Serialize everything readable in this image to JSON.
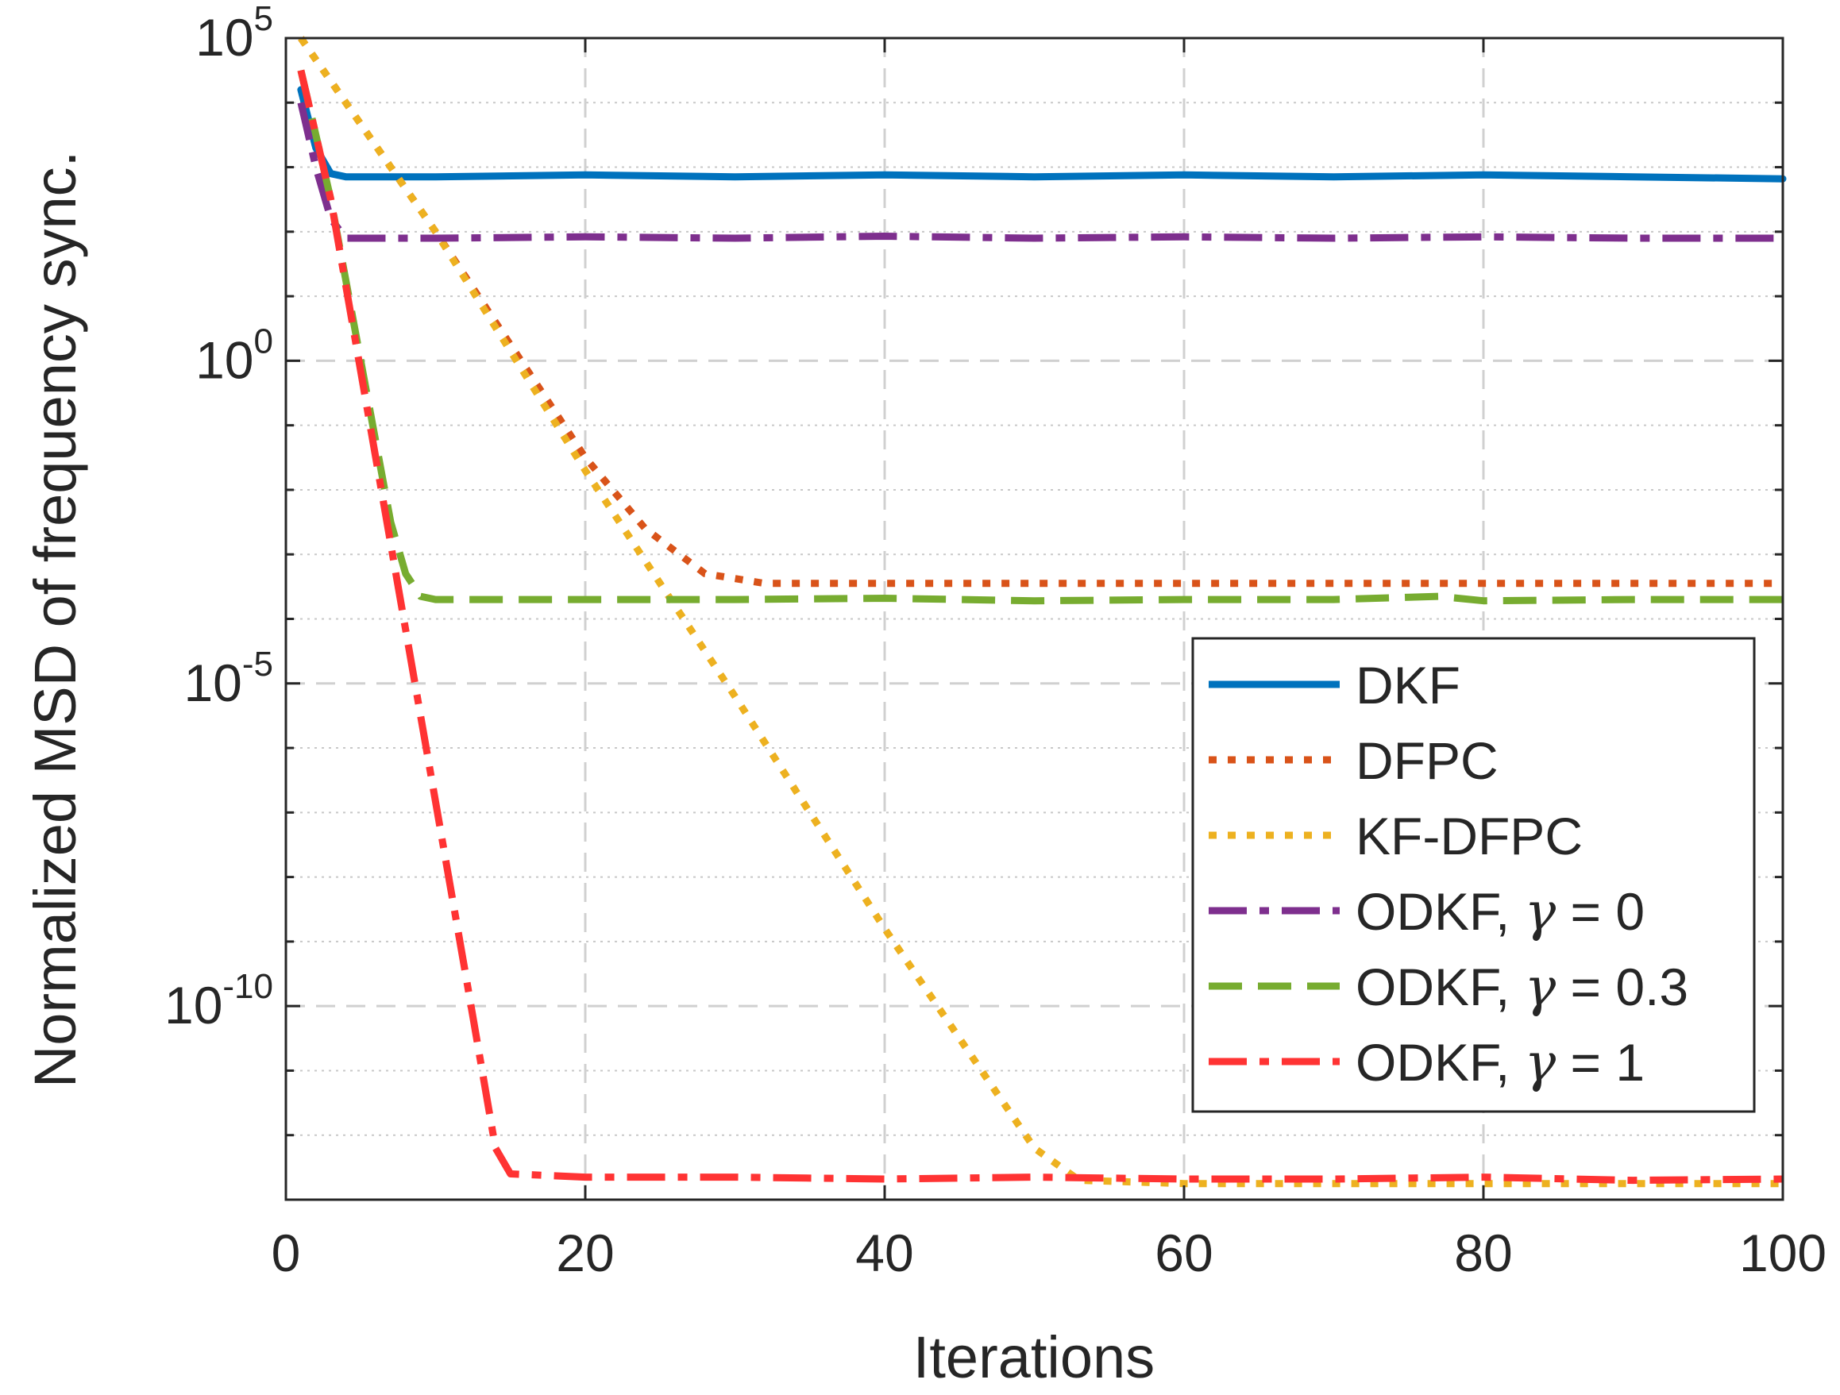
{
  "chart_data": {
    "type": "line",
    "title": "",
    "xlabel": "Iterations",
    "ylabel": "Normalized MSD of frequency sync.",
    "xlim": [
      0,
      100
    ],
    "ylim_exponent": [
      -13,
      5
    ],
    "yscale": "log",
    "grid": true,
    "legend_position": "bottom-right",
    "x_ticks": [
      "0",
      "20",
      "40",
      "60",
      "80",
      "100"
    ],
    "y_ticks": [
      {
        "base": "10",
        "exp": "5",
        "value_exp": 5
      },
      {
        "base": "10",
        "exp": "0",
        "value_exp": 0
      },
      {
        "base": "10",
        "exp": "-5",
        "value_exp": -5
      },
      {
        "base": "10",
        "exp": "-10",
        "value_exp": -10
      }
    ],
    "series": [
      {
        "name": "DKF",
        "color": "#0072BD",
        "style": "solid",
        "points_log10": [
          [
            1,
            4.2
          ],
          [
            2,
            3.3
          ],
          [
            3,
            2.9
          ],
          [
            4,
            2.85
          ],
          [
            10,
            2.85
          ],
          [
            20,
            2.88
          ],
          [
            30,
            2.85
          ],
          [
            40,
            2.88
          ],
          [
            50,
            2.85
          ],
          [
            60,
            2.88
          ],
          [
            70,
            2.85
          ],
          [
            80,
            2.88
          ],
          [
            90,
            2.85
          ],
          [
            100,
            2.82
          ]
        ]
      },
      {
        "name": "DFPC",
        "color": "#D95319",
        "style": "dotted",
        "points_log10": [
          [
            1,
            5
          ],
          [
            10,
            2.0
          ],
          [
            20,
            -1.5
          ],
          [
            24,
            -2.6
          ],
          [
            28,
            -3.3
          ],
          [
            32,
            -3.45
          ],
          [
            40,
            -3.45
          ],
          [
            60,
            -3.45
          ],
          [
            80,
            -3.45
          ],
          [
            100,
            -3.45
          ]
        ]
      },
      {
        "name": "KF-DFPC",
        "color": "#EDB120",
        "style": "dotted",
        "points_log10": [
          [
            1,
            5
          ],
          [
            10,
            2.0
          ],
          [
            20,
            -1.7
          ],
          [
            30,
            -5.2
          ],
          [
            40,
            -8.8
          ],
          [
            50,
            -12.2
          ],
          [
            53,
            -12.7
          ],
          [
            60,
            -12.75
          ],
          [
            80,
            -12.75
          ],
          [
            100,
            -12.75
          ]
        ]
      },
      {
        "name": "ODKF, γ = 0",
        "color": "#7E2F8E",
        "style": "dashdot",
        "points_log10": [
          [
            1,
            4.0
          ],
          [
            2,
            3.0
          ],
          [
            3,
            2.2
          ],
          [
            4,
            1.9
          ],
          [
            10,
            1.9
          ],
          [
            20,
            1.92
          ],
          [
            30,
            1.9
          ],
          [
            40,
            1.93
          ],
          [
            50,
            1.9
          ],
          [
            60,
            1.92
          ],
          [
            70,
            1.9
          ],
          [
            80,
            1.92
          ],
          [
            90,
            1.9
          ],
          [
            100,
            1.9
          ]
        ]
      },
      {
        "name": "ODKF, γ = 0.3",
        "color": "#77AC30",
        "style": "dashed",
        "points_log10": [
          [
            1,
            4.5
          ],
          [
            3,
            2.5
          ],
          [
            5,
            0.0
          ],
          [
            7,
            -2.5
          ],
          [
            8,
            -3.3
          ],
          [
            9,
            -3.65
          ],
          [
            10,
            -3.7
          ],
          [
            20,
            -3.7
          ],
          [
            30,
            -3.7
          ],
          [
            40,
            -3.68
          ],
          [
            50,
            -3.72
          ],
          [
            60,
            -3.7
          ],
          [
            70,
            -3.7
          ],
          [
            77,
            -3.65
          ],
          [
            80,
            -3.72
          ],
          [
            90,
            -3.7
          ],
          [
            100,
            -3.7
          ]
        ]
      },
      {
        "name": "ODKF, γ = 1",
        "color": "#FF3333",
        "style": "dashdot",
        "points_log10": [
          [
            1,
            4.5
          ],
          [
            3,
            2.5
          ],
          [
            6,
            -1.5
          ],
          [
            9,
            -5.5
          ],
          [
            12,
            -9.5
          ],
          [
            14,
            -12.2
          ],
          [
            15,
            -12.6
          ],
          [
            20,
            -12.65
          ],
          [
            30,
            -12.65
          ],
          [
            40,
            -12.68
          ],
          [
            50,
            -12.65
          ],
          [
            60,
            -12.68
          ],
          [
            70,
            -12.68
          ],
          [
            80,
            -12.65
          ],
          [
            90,
            -12.7
          ],
          [
            100,
            -12.68
          ]
        ]
      }
    ]
  }
}
